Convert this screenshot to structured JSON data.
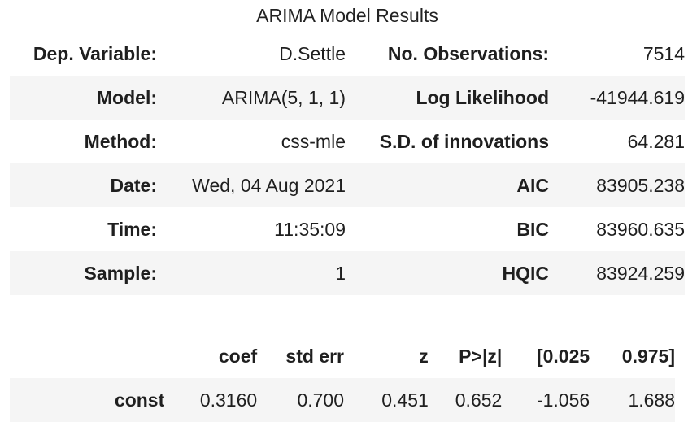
{
  "title": "ARIMA Model Results",
  "summary": {
    "rows": [
      {
        "l1": "Dep. Variable:",
        "v1": "D.Settle",
        "l2": "No. Observations:",
        "v2": "7514"
      },
      {
        "l1": "Model:",
        "v1": "ARIMA(5, 1, 1)",
        "l2": "Log Likelihood",
        "v2": "-41944.619"
      },
      {
        "l1": "Method:",
        "v1": "css-mle",
        "l2": "S.D. of innovations",
        "v2": "64.281"
      },
      {
        "l1": "Date:",
        "v1": "Wed, 04 Aug 2021",
        "l2": "AIC",
        "v2": "83905.238"
      },
      {
        "l1": "Time:",
        "v1": "11:35:09",
        "l2": "BIC",
        "v2": "83960.635"
      },
      {
        "l1": "Sample:",
        "v1": "1",
        "l2": "HQIC",
        "v2": "83924.259"
      }
    ]
  },
  "coef_table": {
    "headers": [
      "",
      "coef",
      "std err",
      "z",
      "P>|z|",
      "[0.025",
      "0.975]"
    ],
    "rows": [
      {
        "name": "const",
        "coef": "0.3160",
        "std_err": "0.700",
        "z": "0.451",
        "p": "0.652",
        "lo": "-1.056",
        "hi": "1.688"
      }
    ]
  }
}
